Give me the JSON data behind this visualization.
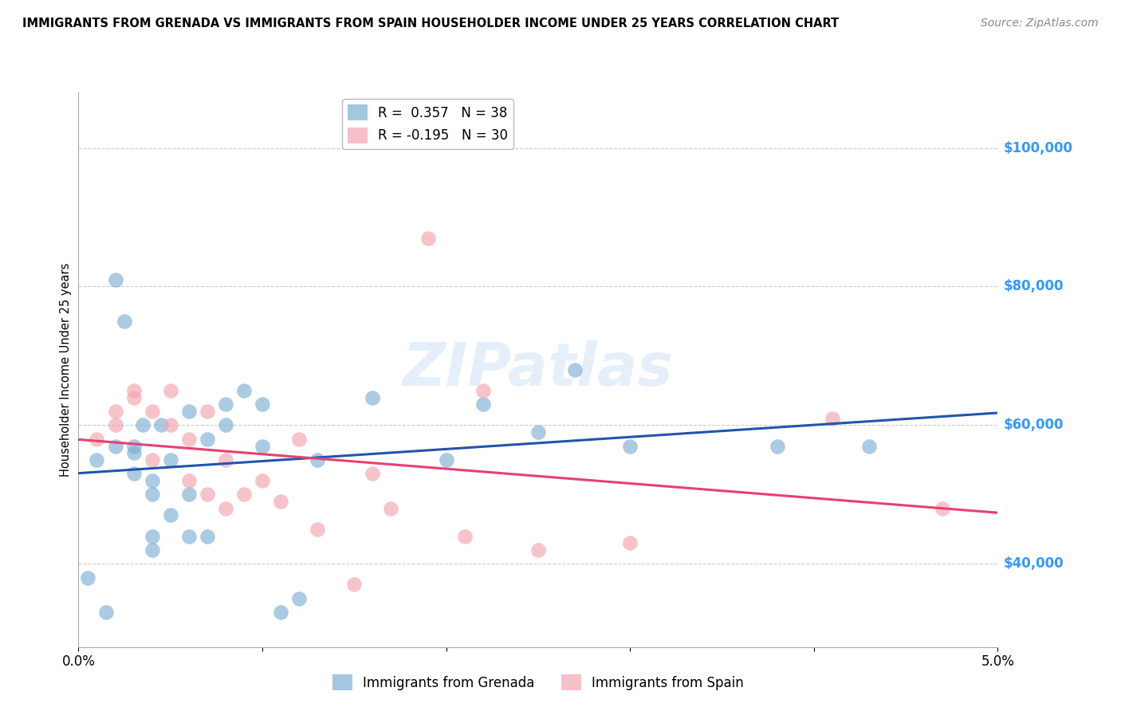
{
  "title": "IMMIGRANTS FROM GRENADA VS IMMIGRANTS FROM SPAIN HOUSEHOLDER INCOME UNDER 25 YEARS CORRELATION CHART",
  "source": "Source: ZipAtlas.com",
  "ylabel": "Householder Income Under 25 years",
  "xlim": [
    0.0,
    0.05
  ],
  "ylim": [
    28000,
    108000
  ],
  "xticks": [
    0.0,
    0.01,
    0.02,
    0.03,
    0.04,
    0.05
  ],
  "xticklabels": [
    "0.0%",
    "",
    "",
    "",
    "",
    "5.0%"
  ],
  "ytick_labels": [
    "$40,000",
    "$60,000",
    "$80,000",
    "$100,000"
  ],
  "ytick_values": [
    40000,
    60000,
    80000,
    100000
  ],
  "watermark": "ZIPatlas",
  "legend_grenada_r": "0.357",
  "legend_grenada_n": "38",
  "legend_spain_r": "-0.195",
  "legend_spain_n": "30",
  "color_grenada": "#7EB0D4",
  "color_spain": "#F4A4B0",
  "color_line_grenada": "#2255AA",
  "color_line_spain": "#E84070",
  "color_ytick": "#3399FF",
  "grenada_x": [
    0.0005,
    0.001,
    0.0015,
    0.002,
    0.002,
    0.0025,
    0.003,
    0.003,
    0.003,
    0.0035,
    0.004,
    0.004,
    0.004,
    0.004,
    0.0045,
    0.005,
    0.005,
    0.006,
    0.006,
    0.006,
    0.007,
    0.007,
    0.008,
    0.008,
    0.009,
    0.01,
    0.01,
    0.011,
    0.012,
    0.013,
    0.016,
    0.02,
    0.022,
    0.025,
    0.027,
    0.03,
    0.038,
    0.043
  ],
  "grenada_y": [
    38000,
    55000,
    33000,
    57000,
    81000,
    75000,
    53000,
    56000,
    57000,
    60000,
    42000,
    44000,
    50000,
    52000,
    60000,
    47000,
    55000,
    44000,
    50000,
    62000,
    44000,
    58000,
    60000,
    63000,
    65000,
    57000,
    63000,
    33000,
    35000,
    55000,
    64000,
    55000,
    63000,
    59000,
    68000,
    57000,
    57000,
    57000
  ],
  "spain_x": [
    0.001,
    0.002,
    0.002,
    0.003,
    0.003,
    0.004,
    0.004,
    0.005,
    0.005,
    0.006,
    0.006,
    0.007,
    0.007,
    0.008,
    0.008,
    0.009,
    0.01,
    0.011,
    0.012,
    0.013,
    0.015,
    0.016,
    0.017,
    0.019,
    0.021,
    0.022,
    0.025,
    0.03,
    0.041,
    0.047
  ],
  "spain_y": [
    58000,
    60000,
    62000,
    64000,
    65000,
    55000,
    62000,
    60000,
    65000,
    52000,
    58000,
    50000,
    62000,
    48000,
    55000,
    50000,
    52000,
    49000,
    58000,
    45000,
    37000,
    53000,
    48000,
    87000,
    44000,
    65000,
    42000,
    43000,
    61000,
    48000
  ]
}
